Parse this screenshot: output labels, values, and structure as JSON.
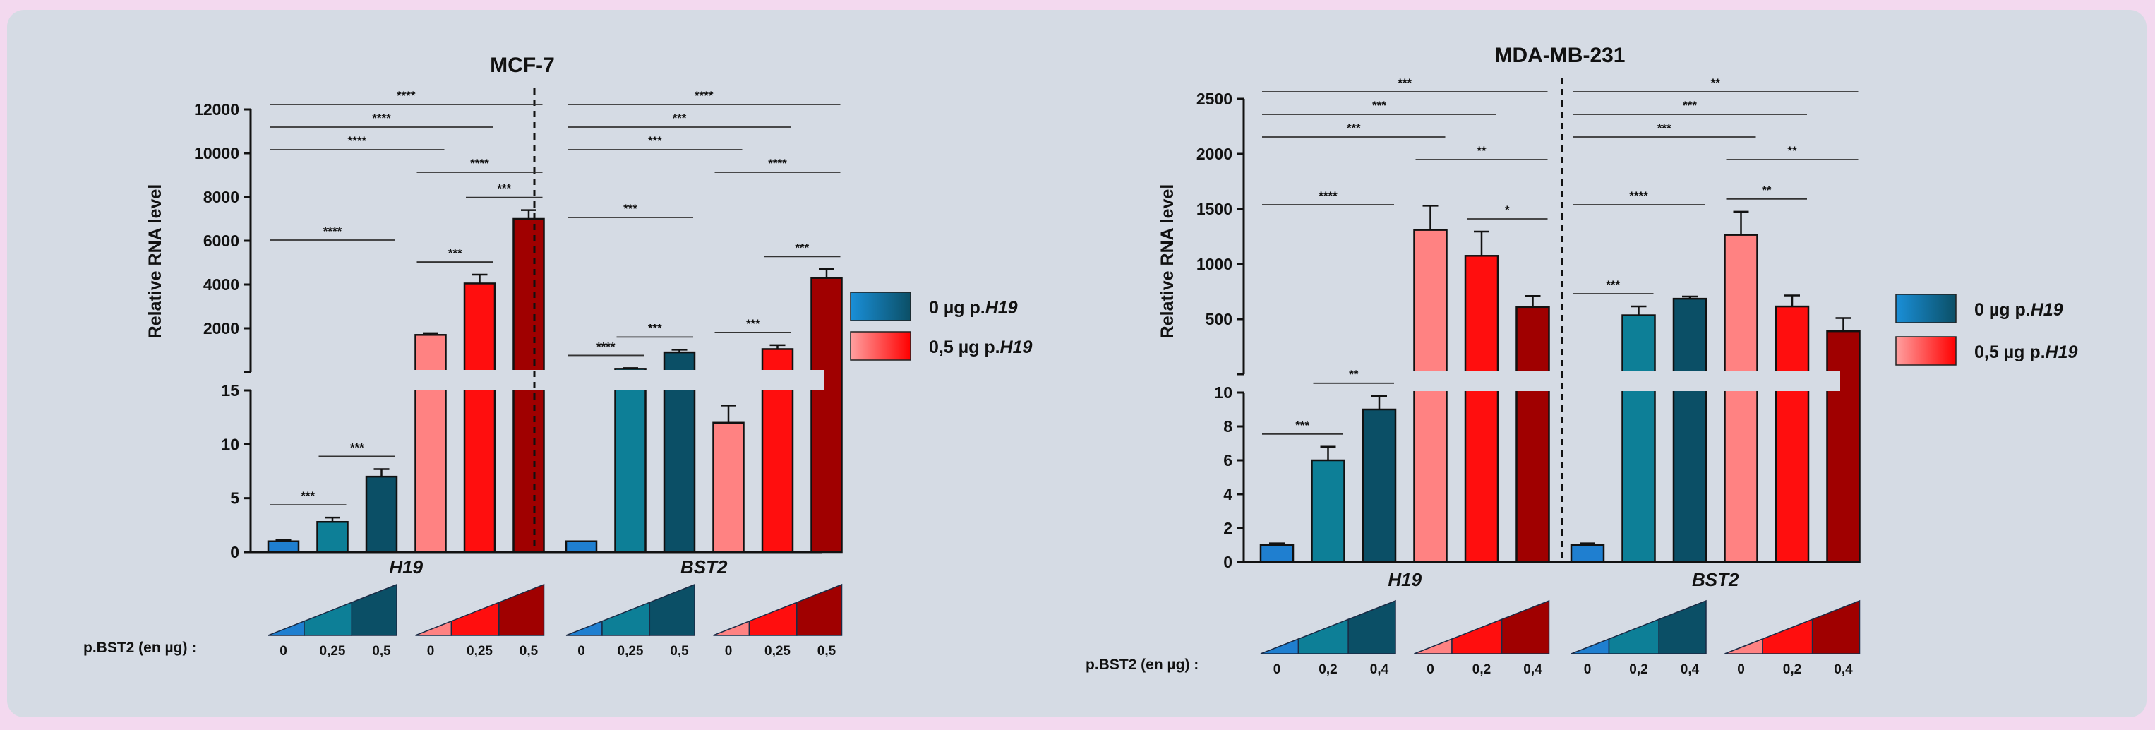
{
  "colors": {
    "blue_light": "#1f7fd0",
    "teal": "#0d7f97",
    "teal_dark": "#0b4f66",
    "pink": "#ff8282",
    "red": "#ff0e0e",
    "dark_red": "#a00000",
    "background": "#d5dbe4"
  },
  "legend": {
    "entry0_prefix": "0 µg p.",
    "entry0_gene": "H19",
    "entry1_prefix": "0,5 µg p.",
    "entry1_gene": "H19"
  },
  "chart_data": [
    {
      "type": "bar",
      "title": "MCF-7",
      "ylabel": "Relative RNA level",
      "xlabel_row": "p.BST2 (en µg) :",
      "groups": [
        "H19",
        "BST2"
      ],
      "dose_labels": [
        "0",
        "0,25",
        "0,5"
      ],
      "axis_break": true,
      "y_lower": {
        "ylim": [
          0,
          15
        ],
        "ticks": [
          "0",
          "5",
          "10",
          "15"
        ]
      },
      "y_upper": {
        "ylim": [
          0,
          12000
        ],
        "ticks": [
          "2000",
          "4000",
          "6000",
          "8000",
          "10000",
          "12000"
        ]
      },
      "bars": [
        {
          "group": "H19",
          "pH19": "0 µg",
          "dose": "0",
          "value": 1,
          "error": 0.1
        },
        {
          "group": "H19",
          "pH19": "0 µg",
          "dose": "0,25",
          "value": 2.8,
          "error": 0.4
        },
        {
          "group": "H19",
          "pH19": "0 µg",
          "dose": "0,5",
          "value": 7,
          "error": 0.7
        },
        {
          "group": "H19",
          "pH19": "0,5 µg",
          "dose": "0",
          "value": 1700,
          "error": 80
        },
        {
          "group": "H19",
          "pH19": "0,5 µg",
          "dose": "0,25",
          "value": 4050,
          "error": 400
        },
        {
          "group": "H19",
          "pH19": "0,5 µg",
          "dose": "0,5",
          "value": 7000,
          "error": 400
        },
        {
          "group": "BST2",
          "pH19": "0 µg",
          "dose": "0",
          "value": 1,
          "error": 0
        },
        {
          "group": "BST2",
          "pH19": "0 µg",
          "dose": "0,25",
          "value": 150,
          "error": 30
        },
        {
          "group": "BST2",
          "pH19": "0 µg",
          "dose": "0,5",
          "value": 900,
          "error": 120
        },
        {
          "group": "BST2",
          "pH19": "0,5 µg",
          "dose": "0",
          "value": 12,
          "error": 1.6
        },
        {
          "group": "BST2",
          "pH19": "0,5 µg",
          "dose": "0,25",
          "value": 1050,
          "error": 180
        },
        {
          "group": "BST2",
          "pH19": "0,5 µg",
          "dose": "0,5",
          "value": 4300,
          "error": 400
        }
      ],
      "significance": [
        {
          "from": 1,
          "to": 6,
          "label": "****"
        },
        {
          "from": 1,
          "to": 5,
          "label": "****"
        },
        {
          "from": 1,
          "to": 4,
          "label": "****"
        },
        {
          "from": 4,
          "to": 6,
          "label": "****"
        },
        {
          "from": 5,
          "to": 6,
          "label": "***"
        },
        {
          "from": 4,
          "to": 5,
          "label": "***"
        },
        {
          "from": 1,
          "to": 3,
          "label": "****"
        },
        {
          "from": 2,
          "to": 3,
          "label": "***"
        },
        {
          "from": 1,
          "to": 2,
          "label": "***"
        },
        {
          "from": 7,
          "to": 12,
          "label": "****"
        },
        {
          "from": 7,
          "to": 11,
          "label": "***"
        },
        {
          "from": 7,
          "to": 10,
          "label": "***"
        },
        {
          "from": 10,
          "to": 12,
          "label": "****"
        },
        {
          "from": 11,
          "to": 12,
          "label": "***"
        },
        {
          "from": 7,
          "to": 9,
          "label": "***"
        },
        {
          "from": 8,
          "to": 9,
          "label": "***"
        },
        {
          "from": 7,
          "to": 8,
          "label": "****"
        },
        {
          "from": 10,
          "to": 11,
          "label": "***"
        }
      ]
    },
    {
      "type": "bar",
      "title": "MDA-MB-231",
      "ylabel": "Relative RNA level",
      "xlabel_row": "p.BST2 (en µg) :",
      "groups": [
        "H19",
        "BST2"
      ],
      "dose_labels": [
        "0",
        "0,2",
        "0,4"
      ],
      "axis_break": true,
      "y_lower": {
        "ylim": [
          0,
          10
        ],
        "ticks": [
          "0",
          "2",
          "4",
          "6",
          "8",
          "10"
        ]
      },
      "y_upper": {
        "ylim": [
          0,
          2500
        ],
        "ticks": [
          "500",
          "1000",
          "1500",
          "2000",
          "2500"
        ]
      },
      "bars": [
        {
          "group": "H19",
          "pH19": "0 µg",
          "dose": "0",
          "value": 1,
          "error": 0.1
        },
        {
          "group": "H19",
          "pH19": "0 µg",
          "dose": "0,2",
          "value": 6,
          "error": 0.8
        },
        {
          "group": "H19",
          "pH19": "0 µg",
          "dose": "0,4",
          "value": 9,
          "error": 0.8
        },
        {
          "group": "H19",
          "pH19": "0,5 µg",
          "dose": "0",
          "value": 1310,
          "error": 220
        },
        {
          "group": "H19",
          "pH19": "0,5 µg",
          "dose": "0,2",
          "value": 1075,
          "error": 220
        },
        {
          "group": "H19",
          "pH19": "0,5 µg",
          "dose": "0,4",
          "value": 610,
          "error": 100
        },
        {
          "group": "BST2",
          "pH19": "0 µg",
          "dose": "0",
          "value": 1,
          "error": 0.1
        },
        {
          "group": "BST2",
          "pH19": "0 µg",
          "dose": "0,2",
          "value": 535,
          "error": 80
        },
        {
          "group": "BST2",
          "pH19": "0 µg",
          "dose": "0,4",
          "value": 685,
          "error": 20
        },
        {
          "group": "BST2",
          "pH19": "0,5 µg",
          "dose": "0",
          "value": 1265,
          "error": 210
        },
        {
          "group": "BST2",
          "pH19": "0,5 µg",
          "dose": "0,2",
          "value": 615,
          "error": 100
        },
        {
          "group": "BST2",
          "pH19": "0,5 µg",
          "dose": "0,4",
          "value": 390,
          "error": 120
        }
      ],
      "significance": [
        {
          "from": 1,
          "to": 6,
          "label": "***"
        },
        {
          "from": 1,
          "to": 5,
          "label": "***"
        },
        {
          "from": 1,
          "to": 4,
          "label": "***"
        },
        {
          "from": 4,
          "to": 6,
          "label": "**"
        },
        {
          "from": 5,
          "to": 6,
          "label": "*"
        },
        {
          "from": 1,
          "to": 3,
          "label": "****"
        },
        {
          "from": 2,
          "to": 3,
          "label": "**"
        },
        {
          "from": 1,
          "to": 2,
          "label": "***"
        },
        {
          "from": 7,
          "to": 12,
          "label": "**"
        },
        {
          "from": 7,
          "to": 11,
          "label": "***"
        },
        {
          "from": 7,
          "to": 10,
          "label": "***"
        },
        {
          "from": 10,
          "to": 12,
          "label": "**"
        },
        {
          "from": 10,
          "to": 11,
          "label": "**"
        },
        {
          "from": 7,
          "to": 9,
          "label": "****"
        },
        {
          "from": 7,
          "to": 8,
          "label": "***"
        }
      ]
    }
  ]
}
